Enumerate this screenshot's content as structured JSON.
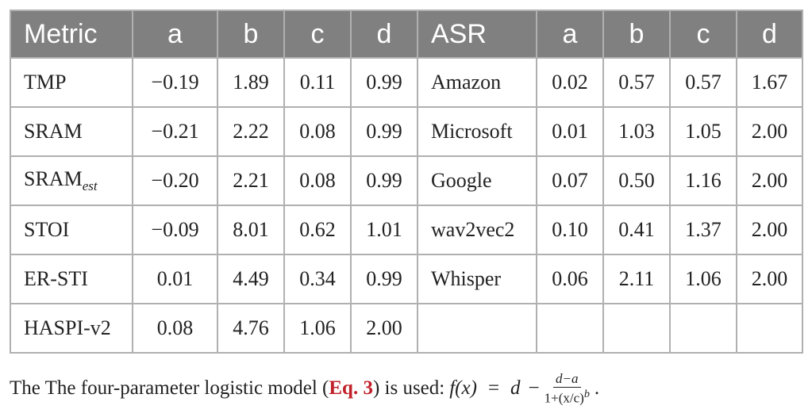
{
  "table": {
    "header": [
      "Metric",
      "a",
      "b",
      "c",
      "d",
      "ASR",
      "a",
      "b",
      "c",
      "d"
    ],
    "left_rows": [
      [
        "TMP",
        "−0.19",
        "1.89",
        "0.11",
        "0.99"
      ],
      [
        "SRAM",
        "−0.21",
        "2.22",
        "0.08",
        "0.99"
      ],
      [
        {
          "text": "SRAM",
          "sub": "est"
        },
        "−0.20",
        "2.21",
        "0.08",
        "0.99"
      ],
      [
        "STOI",
        "−0.09",
        "8.01",
        "0.62",
        "1.01"
      ],
      [
        "ER-STI",
        "0.01",
        "4.49",
        "0.34",
        "0.99"
      ],
      [
        "HASPI-v2",
        "0.08",
        "4.76",
        "1.06",
        "2.00"
      ]
    ],
    "right_rows": [
      [
        "Amazon",
        "0.02",
        "0.57",
        "0.57",
        "1.67"
      ],
      [
        "Microsoft",
        "0.01",
        "1.03",
        "1.05",
        "2.00"
      ],
      [
        "Google",
        "0.07",
        "0.50",
        "1.16",
        "2.00"
      ],
      [
        "wav2vec2",
        "0.10",
        "0.41",
        "1.37",
        "2.00"
      ],
      [
        "Whisper",
        "0.06",
        "2.11",
        "1.06",
        "2.00"
      ]
    ]
  },
  "caption": {
    "before": "The The four-parameter logistic model (",
    "ref": "Eq. 3",
    "after": ") is used:",
    "formula": {
      "lhs": "f(x)",
      "eq": "=",
      "d": "d",
      "minus": "−",
      "numerator": "d−a",
      "denominator": "1+(x/c)",
      "exponent": "b",
      "end": "."
    }
  }
}
